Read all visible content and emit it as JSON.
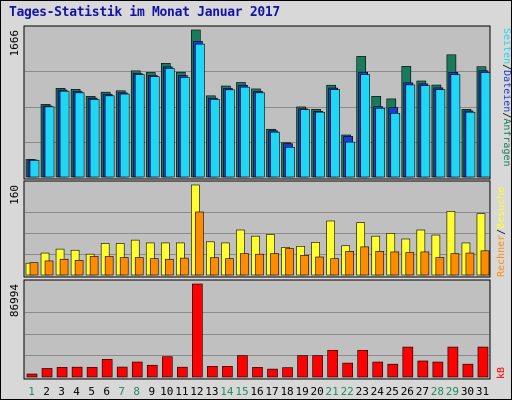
{
  "title": "Tages-Statistik im Monat Januar 2017",
  "days": [
    "1",
    "2",
    "3",
    "4",
    "5",
    "6",
    "7",
    "8",
    "9",
    "10",
    "11",
    "12",
    "13",
    "14",
    "15",
    "16",
    "17",
    "18",
    "19",
    "20",
    "21",
    "22",
    "23",
    "24",
    "25",
    "26",
    "27",
    "28",
    "29",
    "30",
    "31"
  ],
  "weekend_days": [
    "1",
    "7",
    "8",
    "14",
    "15",
    "21",
    "22",
    "28",
    "29"
  ],
  "colors": {
    "anfragen": "#1a7a5c",
    "dateien": "#1a3cd0",
    "seiten": "#1fd6f5",
    "besuche": "#ffff30",
    "rechner": "#ff8c00",
    "kb": "#ff0000",
    "panel_bg": "#c0c0c0",
    "weekend_label": "#208c60"
  },
  "chart_data": [
    {
      "type": "bar",
      "name": "Anfragen / Dateien / Seiten",
      "ymax_label": "1666",
      "ymax": 1666,
      "right_labels": [
        "Anfragen",
        "/",
        "Dateien",
        "/",
        "Seiten"
      ],
      "series": [
        {
          "name": "Anfragen",
          "values": [
            199,
            823,
            1005,
            994,
            914,
            961,
            977,
            1203,
            1185,
            1288,
            1188,
            1666,
            920,
            1031,
            1071,
            998,
            541,
            388,
            794,
            767,
            1040,
            476,
            1367,
            914,
            885,
            1254,
            1088,
            1042,
            1385,
            767,
            1250
          ]
        },
        {
          "name": "Dateien",
          "values": [
            193,
            805,
            985,
            969,
            894,
            936,
            954,
            1173,
            1150,
            1248,
            1150,
            1538,
            893,
            1003,
            1040,
            970,
            524,
            377,
            772,
            744,
            1008,
            460,
            1188,
            797,
            786,
            1067,
            1055,
            1010,
            1186,
            748,
            1204
          ]
        },
        {
          "name": "Seiten",
          "values": [
            188,
            795,
            972,
            954,
            878,
            920,
            940,
            1160,
            1137,
            1230,
            1128,
            1506,
            879,
            988,
            1018,
            954,
            508,
            337,
            763,
            734,
            990,
            395,
            1161,
            779,
            722,
            1044,
            1036,
            990,
            1160,
            734,
            1184
          ]
        }
      ]
    },
    {
      "type": "bar",
      "name": "Besuche / Rechner",
      "ymax_label": "160",
      "ymax": 160,
      "right_labels": [
        "Rechner",
        "/",
        "Besuche"
      ],
      "series": [
        {
          "name": "Besuche",
          "values": [
            21,
            39,
            46,
            44,
            37,
            56,
            56,
            62,
            57,
            57,
            57,
            160,
            59,
            57,
            80,
            69,
            72,
            49,
            51,
            58,
            96,
            52,
            93,
            69,
            74,
            64,
            80,
            71,
            113,
            57,
            109
          ]
        },
        {
          "name": "Rechner",
          "values": [
            22,
            25,
            28,
            26,
            33,
            33,
            31,
            31,
            29,
            28,
            30,
            112,
            31,
            29,
            38,
            37,
            38,
            47,
            35,
            32,
            29,
            42,
            50,
            42,
            41,
            40,
            41,
            31,
            38,
            39,
            43
          ]
        }
      ]
    },
    {
      "type": "bar",
      "name": "kB",
      "ymax_label": "86994",
      "ymax": 86994,
      "right_labels": [
        "kB"
      ],
      "series": [
        {
          "name": "kB",
          "values": [
            2800,
            8000,
            9000,
            9200,
            9000,
            16500,
            9300,
            14000,
            11000,
            19000,
            9200,
            86994,
            10000,
            10000,
            20000,
            9000,
            7400,
            8800,
            20000,
            20000,
            25000,
            13000,
            25000,
            14000,
            12000,
            28000,
            15000,
            14000,
            28000,
            12000,
            28000
          ]
        }
      ]
    }
  ]
}
